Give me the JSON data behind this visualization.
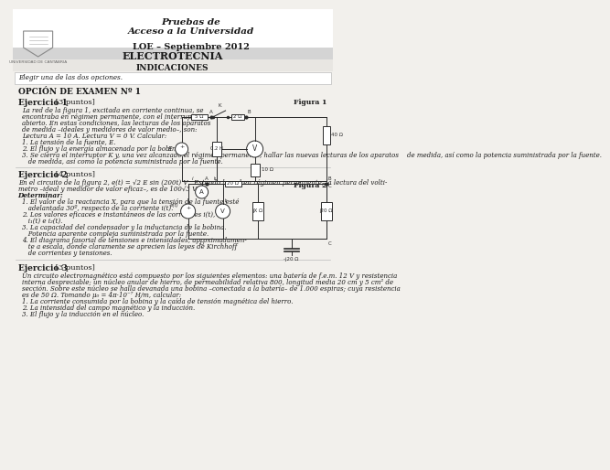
{
  "title_line1": "Pruebas de",
  "title_line2": "Acceso a la Universidad",
  "subtitle": "LOE – Septiembre 2012",
  "subject": "ELECTROTECNIA",
  "indicaciones": "INDICACIONES",
  "elegir": "Elegir una de las dos opciones.",
  "opcion": "OPCIÓN DE EXAMEN Nº 1",
  "ej1_title": "Ejercicio 1",
  "ej1_pts": " [3 puntos]",
  "ej1_body": "La red de la figura 1, excitada en corriente continua, se\nencontraba en régimen permanente, con el interruptor K\nabierto. En estas condiciones, las lecturas de los aparatos\nde medida –ideales y medidores de valor medio–, son:\nLectura A = 10 A. Lectura V = 0 V. Calcular:",
  "ej1_items": [
    "1. La tensión de la fuente, E.",
    "2. El flujo y la energía almacenada por la bobina.",
    "3. Se cierra el interruptor K y, una vez alcanzado el régimen permanente, hallar las nuevas lecturas de los aparatos\n   de medida, así como la potencia suministrada por la fuente."
  ],
  "fig1_label": "Figura 1",
  "ej2_title": "Ejercicio 2",
  "ej2_pts": " [4 puntos]",
  "ej2_line1": "En el circuito de la figura 2, e(t) = √2 E sin (200t) V . Estando la red en régimen permanente, la lectura del volti-",
  "ej2_line2": "metro –ideal y medidor de valor eficaz–, es de 100√3 V.",
  "ej2_determinar": "Determinar:",
  "ej2_items": [
    "1. El valor de la reactancia X, para que la tensión de la fuente esté\n   adelantada 30º, respecto de la corriente i(t).",
    "2. Los valores eficaces e instantáneos de las corrientes i(t),\n   i₁(t) e i₂(t).",
    "3. La capacidad del condensador y la inductancia de la bobina.\n   Potencia aparente compleja suministrada por la fuente.",
    "4. El diagrama fasorial de tensiones e intensidades, aproximadamen-\n   te a escala, donde claramente se aprecien las leyes de Kirchhoff\n   de corrientes y tensiones."
  ],
  "fig2_label": "Figura 2",
  "ej3_title": "Ejercicio 3",
  "ej3_pts": " [3 puntos]",
  "ej3_line1": "Un circuito electromagnético está compuesto por los siguientes elementos: una batería de f.e.m. 12 V y resistencia",
  "ej3_line2": "interna despreciable; un núcleo anular de hierro, de permeabilidad relativa 800, longitud media 20 cm y 5 cm² de",
  "ej3_line3": "sección. Sobre este núcleo se halla devanada una bobina –conectada a la batería– de 1.000 espiras; cuya resistencia",
  "ej3_line4": "es de 50 Ω. Tomando μ₀ = 4π·10⁻⁷ H/m, calcular:",
  "ej3_items": [
    "1. La corriente consumida por la bobina y la caída de tensión magnética del hierro.",
    "2. La intensidad del campo magnético y la inducción.",
    "3. El flujo y la inducción en el núcleo."
  ],
  "bg_color": "#f2f0ec",
  "white": "#ffffff",
  "bar_gray": "#d4d4d4",
  "indic_gray": "#e8e6e2",
  "line_color": "#333333",
  "text_dark": "#1a1a1a",
  "text_gray": "#555555"
}
